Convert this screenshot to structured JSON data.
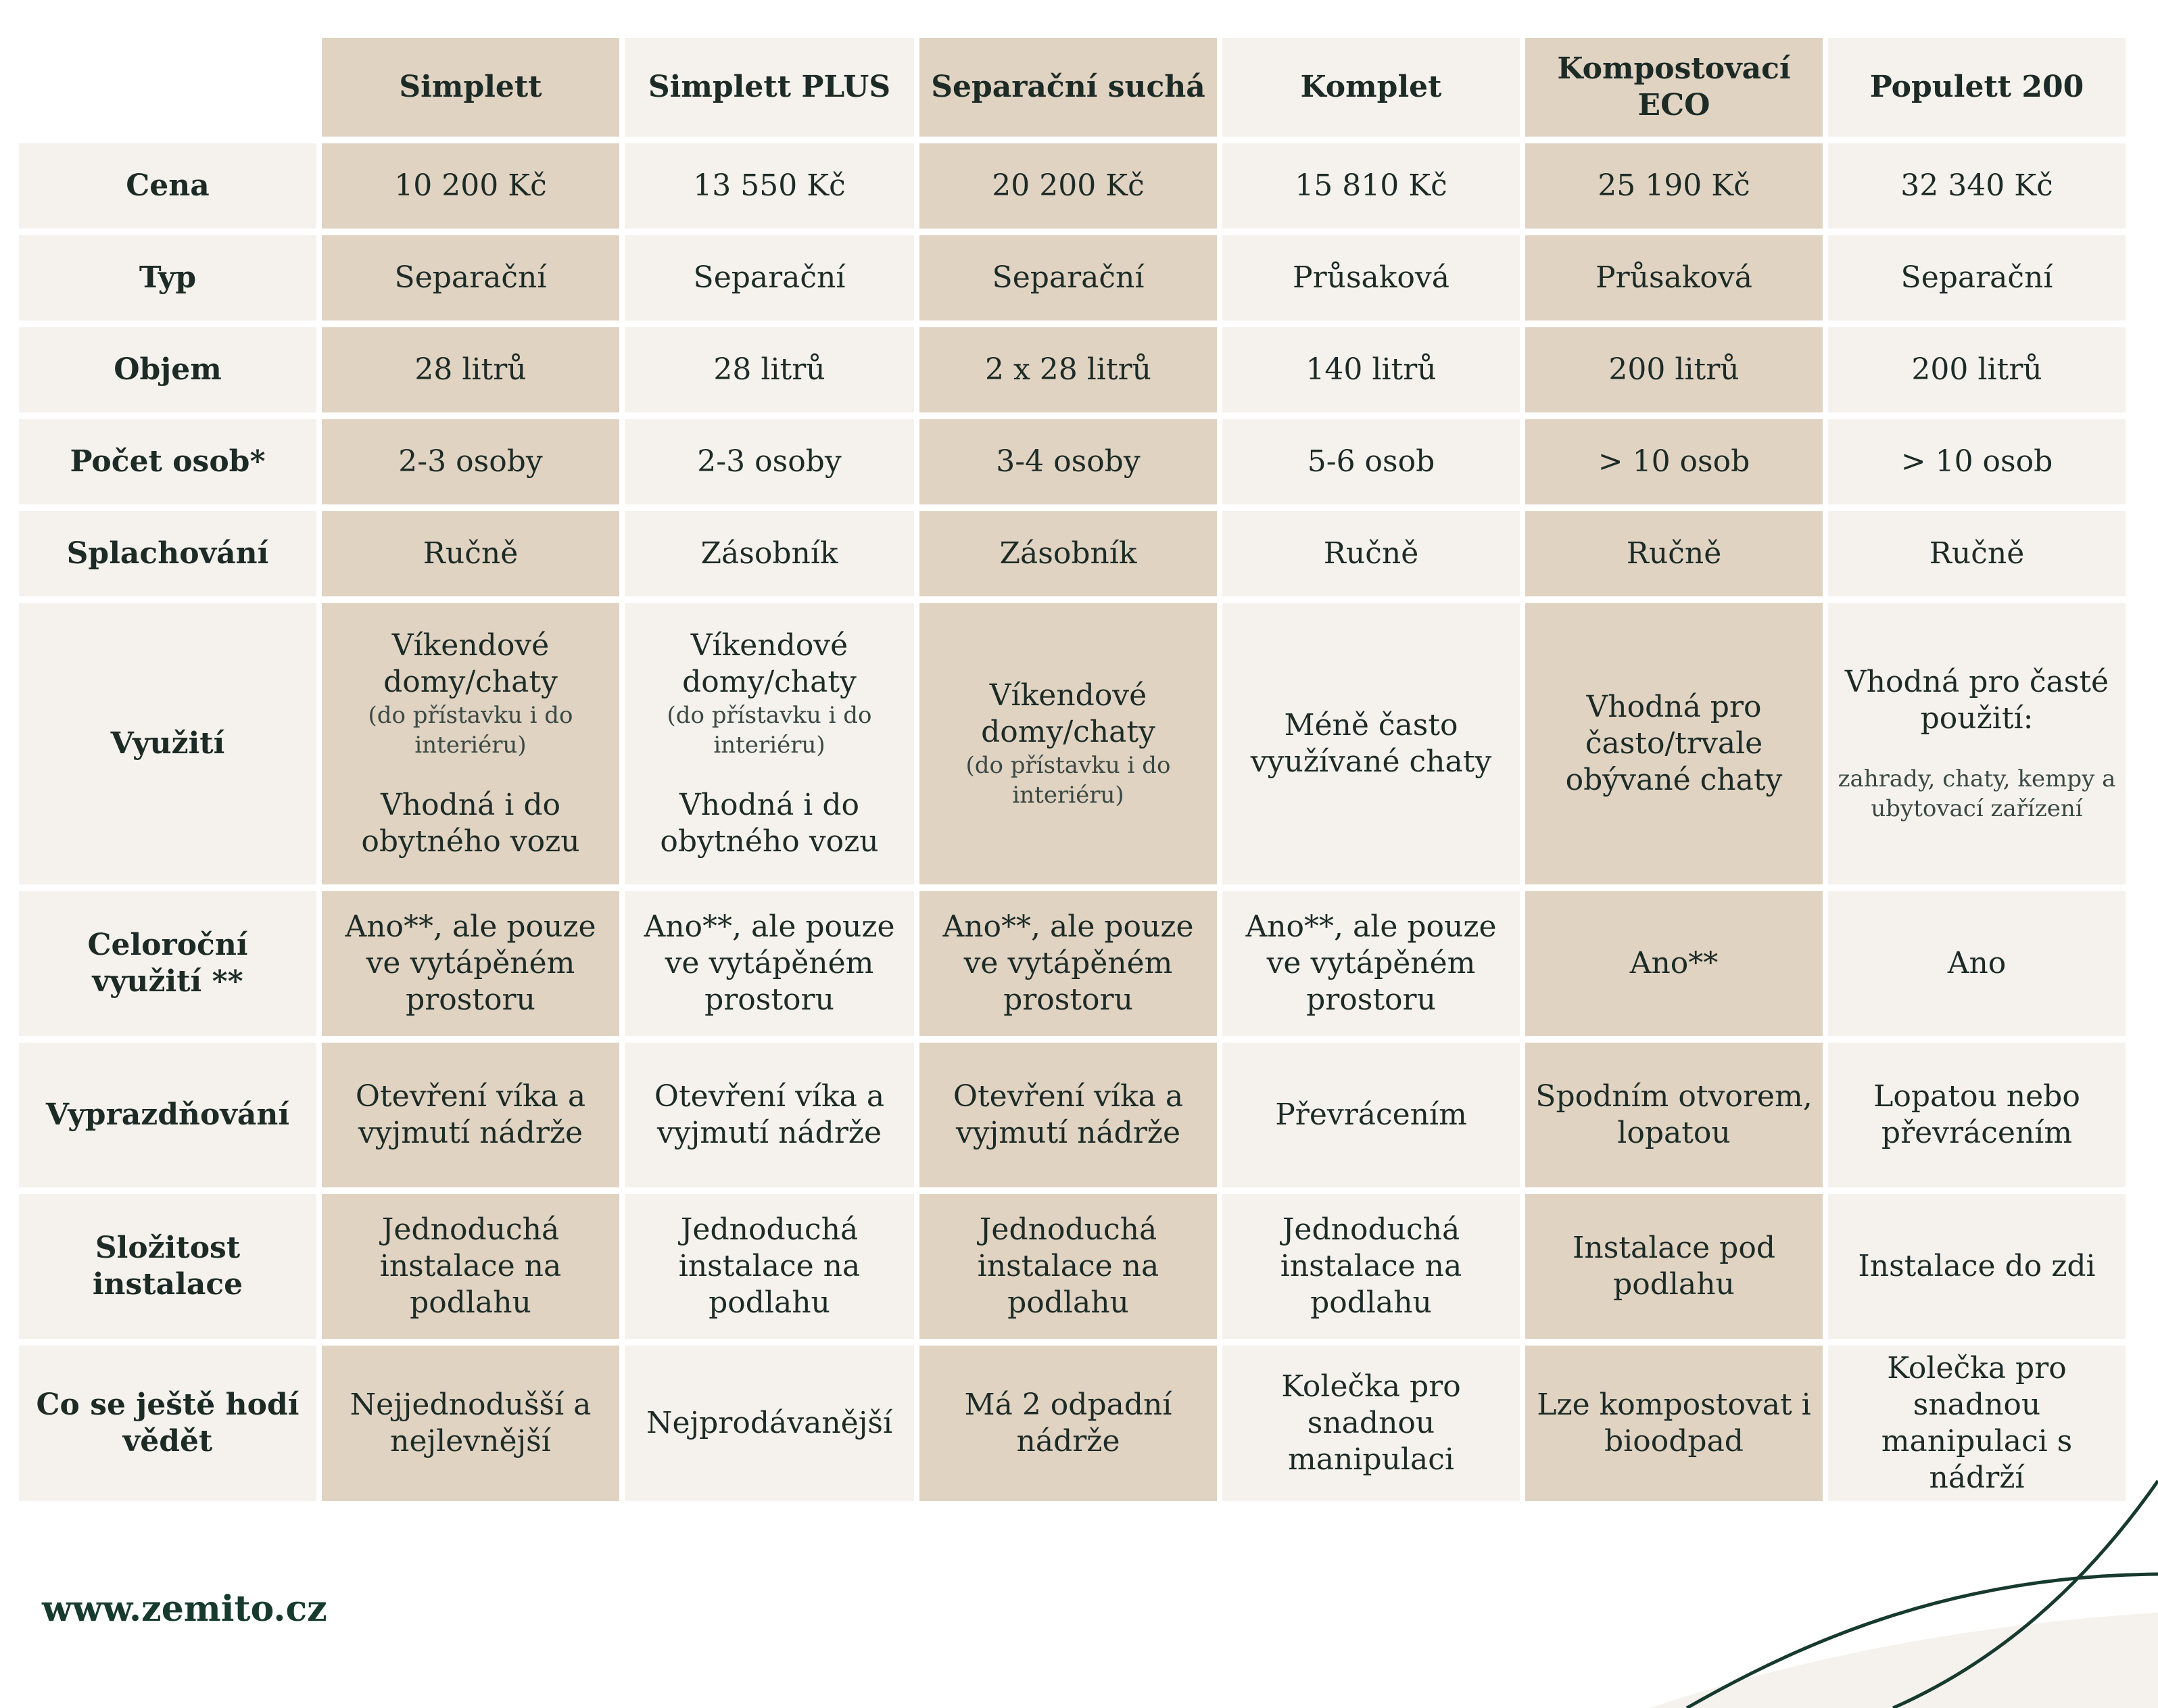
{
  "table": {
    "products": [
      "Simplett",
      "Simplett PLUS",
      "Separační suchá",
      "Komplet",
      "Kompostovací ECO",
      "Populett 200"
    ],
    "rows": [
      {
        "label": "Cena",
        "cells": [
          {
            "main": "10 200 Kč"
          },
          {
            "main": "13 550 Kč"
          },
          {
            "main": "20 200 Kč"
          },
          {
            "main": "15 810 Kč"
          },
          {
            "main": "25 190 Kč"
          },
          {
            "main": "32 340 Kč"
          }
        ]
      },
      {
        "label": "Typ",
        "cells": [
          {
            "main": "Separační"
          },
          {
            "main": "Separační"
          },
          {
            "main": "Separační"
          },
          {
            "main": "Průsaková"
          },
          {
            "main": "Průsaková"
          },
          {
            "main": "Separační"
          }
        ]
      },
      {
        "label": "Objem",
        "cells": [
          {
            "main": "28 litrů"
          },
          {
            "main": "28 litrů"
          },
          {
            "main": "2 x 28 litrů"
          },
          {
            "main": "140 litrů"
          },
          {
            "main": "200 litrů"
          },
          {
            "main": "200 litrů"
          }
        ]
      },
      {
        "label": "Počet osob*",
        "cells": [
          {
            "main": "2-3 osoby"
          },
          {
            "main": "2-3 osoby"
          },
          {
            "main": "3-4 osoby"
          },
          {
            "main": "5-6 osob"
          },
          {
            "main": "> 10 osob"
          },
          {
            "main": "> 10 osob"
          }
        ]
      },
      {
        "label": "Splachování",
        "cells": [
          {
            "main": "Ručně"
          },
          {
            "main": "Zásobník"
          },
          {
            "main": "Zásobník"
          },
          {
            "main": "Ručně"
          },
          {
            "main": "Ručně"
          },
          {
            "main": "Ručně"
          }
        ]
      },
      {
        "label": "Využití",
        "cells": [
          {
            "main": "Víkendové domy/chaty",
            "note": "(do přístavku i do interiéru)",
            "extra": "Vhodná i do obytného vozu"
          },
          {
            "main": "Víkendové domy/chaty",
            "note": "(do přístavku i do interiéru)",
            "extra": "Vhodná i do obytného vozu"
          },
          {
            "main": "Víkendové domy/chaty",
            "note": "(do přístavku i do interiéru)"
          },
          {
            "main": "Méně často využívané chaty"
          },
          {
            "main": "Vhodná pro často/trvale obývané chaty"
          },
          {
            "main": "Vhodná pro časté použití:",
            "note2": "zahrady, chaty, kempy a ubytovací zařízení"
          }
        ]
      },
      {
        "label": "Celoroční využití **",
        "cells": [
          {
            "main": "Ano**, ale pouze ve vytápěném prostoru"
          },
          {
            "main": "Ano**, ale pouze ve vytápěném prostoru"
          },
          {
            "main": "Ano**, ale pouze ve vytápěném prostoru"
          },
          {
            "main": "Ano**, ale pouze ve vytápěném prostoru"
          },
          {
            "main": "Ano**"
          },
          {
            "main": "Ano"
          }
        ]
      },
      {
        "label": "Vyprazdňování",
        "cells": [
          {
            "main": "Otevření víka a vyjmutí nádrže"
          },
          {
            "main": "Otevření víka a vyjmutí nádrže"
          },
          {
            "main": "Otevření víka a vyjmutí nádrže"
          },
          {
            "main": "Převrácením"
          },
          {
            "main": "Spodním otvorem, lopatou"
          },
          {
            "main": "Lopatou nebo převrácením"
          }
        ]
      },
      {
        "label": "Složitost instalace",
        "cells": [
          {
            "main": "Jednoduchá instalace na podlahu"
          },
          {
            "main": "Jednoduchá instalace na podlahu"
          },
          {
            "main": "Jednoduchá instalace na podlahu"
          },
          {
            "main": "Jednoduchá instalace na podlahu"
          },
          {
            "main": "Instalace pod podlahu"
          },
          {
            "main": "Instalace do zdi"
          }
        ]
      },
      {
        "label": "Co se ještě hodí vědět",
        "cells": [
          {
            "main": "Nejjednodušší a nejlevnější"
          },
          {
            "main": "Nejprodávanější"
          },
          {
            "main": "Má 2 odpadní nádrže"
          },
          {
            "main": "Kolečka pro snadnou manipulaci"
          },
          {
            "main": "Lze kompostovat i bioodpad"
          },
          {
            "main": "Kolečka pro snadnou manipulaci s nádrží"
          }
        ]
      }
    ]
  },
  "footer": {
    "url": "www.zemito.cz"
  },
  "colors": {
    "dark": "#e0d3c2",
    "light": "#f5f2ed",
    "text": "#1d2b27",
    "accent": "#173a2e"
  }
}
